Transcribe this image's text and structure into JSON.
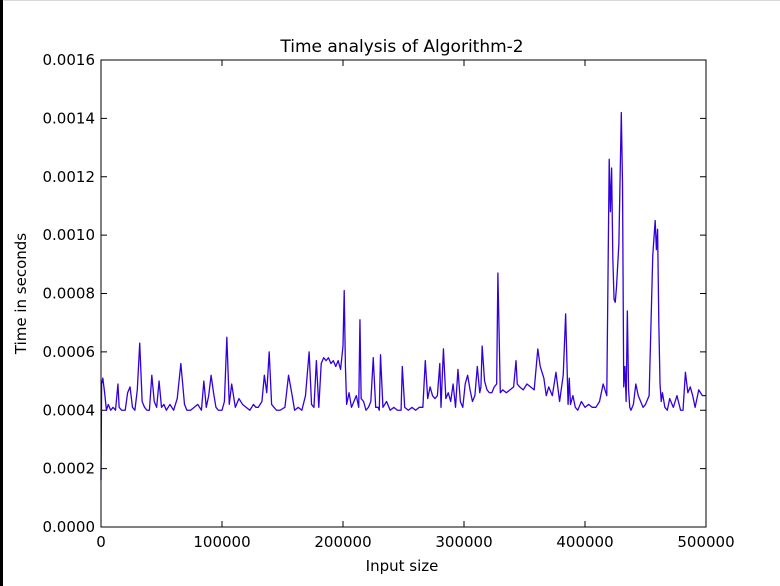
{
  "chart_data": {
    "type": "line",
    "title": "Time analysis of Algorithm-2",
    "xlabel": "Input size",
    "ylabel": "Time in seconds",
    "xlim": [
      0,
      500000
    ],
    "ylim": [
      0,
      0.0016
    ],
    "xticks": [
      "0",
      "100000",
      "200000",
      "300000",
      "400000",
      "500000"
    ],
    "xtick_values": [
      0,
      100000,
      200000,
      300000,
      400000,
      500000
    ],
    "yticks": [
      "0.0000",
      "0.0002",
      "0.0004",
      "0.0006",
      "0.0008",
      "0.0010",
      "0.0012",
      "0.0014",
      "0.0016"
    ],
    "ytick_values": [
      0,
      0.0002,
      0.0004,
      0.0006,
      0.0008,
      0.001,
      0.0012,
      0.0014,
      0.0016
    ],
    "grid": false,
    "legend": "none",
    "series": [
      {
        "color": "#3300dd",
        "x": [
          0,
          500,
          1500,
          3000,
          4500,
          6000,
          8000,
          10000,
          12000,
          14000,
          15000,
          17000,
          20000,
          22000,
          24000,
          26000,
          28000,
          30000,
          32000,
          34000,
          36000,
          38000,
          40000,
          42000,
          44000,
          46000,
          48000,
          50000,
          52000,
          54000,
          57000,
          60000,
          63000,
          66000,
          69000,
          71000,
          74000,
          77000,
          80000,
          83000,
          85000,
          87000,
          89000,
          91000,
          93000,
          95000,
          97000,
          100000,
          102000,
          104000,
          106000,
          108000,
          111000,
          114000,
          117000,
          120000,
          123000,
          126000,
          128000,
          130000,
          133000,
          135000,
          137000,
          139000,
          141000,
          143000,
          145000,
          148000,
          152000,
          155000,
          158000,
          160000,
          163000,
          166000,
          169000,
          172000,
          174000,
          176000,
          178000,
          180000,
          182000,
          184000,
          186000,
          188000,
          190000,
          192000,
          194000,
          196000,
          198000,
          200000,
          201000,
          202000,
          203000,
          205000,
          207000,
          209000,
          211000,
          213000,
          214000,
          215000,
          217000,
          219000,
          221000,
          223000,
          225000,
          227000,
          229000,
          230000,
          231000,
          233000,
          236000,
          239000,
          242000,
          245000,
          248000,
          249000,
          251000,
          254000,
          257000,
          260000,
          263000,
          266000,
          268000,
          270000,
          272000,
          274000,
          276000,
          278000,
          280000,
          281000,
          283000,
          285000,
          287000,
          289000,
          291000,
          293000,
          295000,
          297000,
          299000,
          301000,
          303000,
          305000,
          307000,
          309000,
          311000,
          313000,
          314000,
          315000,
          317000,
          319000,
          321000,
          323000,
          325000,
          327000,
          328000,
          330000,
          332000,
          335000,
          338000,
          341000,
          343000,
          344000,
          346000,
          349000,
          352000,
          355000,
          358000,
          361000,
          363000,
          366000,
          368000,
          370000,
          373000,
          376000,
          379000,
          382000,
          384000,
          386000,
          387000,
          388000,
          390000,
          392000,
          394000,
          397000,
          400000,
          403000,
          406000,
          409000,
          412000,
          415000,
          418000,
          420000,
          421000,
          422000,
          423000,
          424000,
          425000,
          426000,
          428000,
          430000,
          431000,
          432000,
          433000,
          434000,
          435000,
          436000,
          437000,
          438000,
          440000,
          442000,
          444000,
          446000,
          448000,
          450000,
          453000,
          456000,
          458000,
          459000,
          460000,
          461000,
          462000,
          463000,
          464000,
          466000,
          468000,
          470000,
          473000,
          476000,
          479000,
          481000,
          483000,
          485000,
          487000,
          489000,
          491000,
          494000,
          497000,
          500000
        ],
        "y": [
          0.00016,
          0.00049,
          0.00051,
          0.00046,
          0.0004,
          0.00042,
          0.0004,
          0.00041,
          0.0004,
          0.00049,
          0.00041,
          0.0004,
          0.0004,
          0.00046,
          0.00048,
          0.00041,
          0.0004,
          0.00047,
          0.00063,
          0.00043,
          0.00041,
          0.0004,
          0.0004,
          0.00052,
          0.00043,
          0.00041,
          0.0005,
          0.00041,
          0.00042,
          0.0004,
          0.00042,
          0.0004,
          0.00044,
          0.00056,
          0.00042,
          0.0004,
          0.0004,
          0.00041,
          0.00042,
          0.0004,
          0.0005,
          0.00041,
          0.00045,
          0.00052,
          0.00046,
          0.00041,
          0.0004,
          0.0004,
          0.00043,
          0.00065,
          0.00042,
          0.00049,
          0.00041,
          0.00044,
          0.00042,
          0.00041,
          0.0004,
          0.00042,
          0.00041,
          0.00041,
          0.00043,
          0.00052,
          0.00046,
          0.0006,
          0.00042,
          0.00041,
          0.0004,
          0.0004,
          0.00041,
          0.00052,
          0.00045,
          0.0004,
          0.00041,
          0.0004,
          0.00045,
          0.0006,
          0.00042,
          0.00041,
          0.00057,
          0.00041,
          0.00056,
          0.00058,
          0.00057,
          0.00058,
          0.00056,
          0.00057,
          0.00055,
          0.00057,
          0.00054,
          0.00062,
          0.00081,
          0.00055,
          0.00042,
          0.00046,
          0.00041,
          0.00043,
          0.00045,
          0.00041,
          0.00071,
          0.00044,
          0.00043,
          0.0004,
          0.00041,
          0.00043,
          0.00058,
          0.00041,
          0.00041,
          0.0004,
          0.00059,
          0.00041,
          0.00043,
          0.0004,
          0.00041,
          0.0004,
          0.0004,
          0.00055,
          0.00041,
          0.0004,
          0.00041,
          0.0004,
          0.00041,
          0.00041,
          0.00057,
          0.00044,
          0.00048,
          0.00045,
          0.00044,
          0.00045,
          0.00056,
          0.00041,
          0.00061,
          0.00044,
          0.00046,
          0.00043,
          0.00049,
          0.00041,
          0.00054,
          0.00043,
          0.00041,
          0.00049,
          0.00052,
          0.00047,
          0.00043,
          0.00045,
          0.00055,
          0.00046,
          0.00048,
          0.00062,
          0.0005,
          0.00047,
          0.00046,
          0.00046,
          0.00048,
          0.00049,
          0.00087,
          0.00046,
          0.00047,
          0.00046,
          0.00047,
          0.00048,
          0.00057,
          0.00049,
          0.00048,
          0.00047,
          0.00049,
          0.00048,
          0.00047,
          0.00061,
          0.00055,
          0.00051,
          0.00045,
          0.00048,
          0.00045,
          0.00053,
          0.00043,
          0.00052,
          0.00073,
          0.00042,
          0.00051,
          0.00042,
          0.00045,
          0.00041,
          0.0004,
          0.00043,
          0.00041,
          0.00042,
          0.00041,
          0.00041,
          0.00043,
          0.00049,
          0.00045,
          0.00126,
          0.00108,
          0.00123,
          0.00092,
          0.00078,
          0.00077,
          0.00082,
          0.00097,
          0.00142,
          0.00118,
          0.00048,
          0.00055,
          0.00043,
          0.00074,
          0.00047,
          0.00041,
          0.0004,
          0.00042,
          0.00049,
          0.00045,
          0.00043,
          0.00041,
          0.00042,
          0.00045,
          0.00093,
          0.00105,
          0.00095,
          0.00102,
          0.0007,
          0.00049,
          0.00043,
          0.00046,
          0.00041,
          0.0004,
          0.00044,
          0.00041,
          0.00045,
          0.0004,
          0.0004,
          0.00053,
          0.00046,
          0.00048,
          0.00045,
          0.00041,
          0.00047,
          0.00045,
          0.00045
        ]
      }
    ]
  }
}
